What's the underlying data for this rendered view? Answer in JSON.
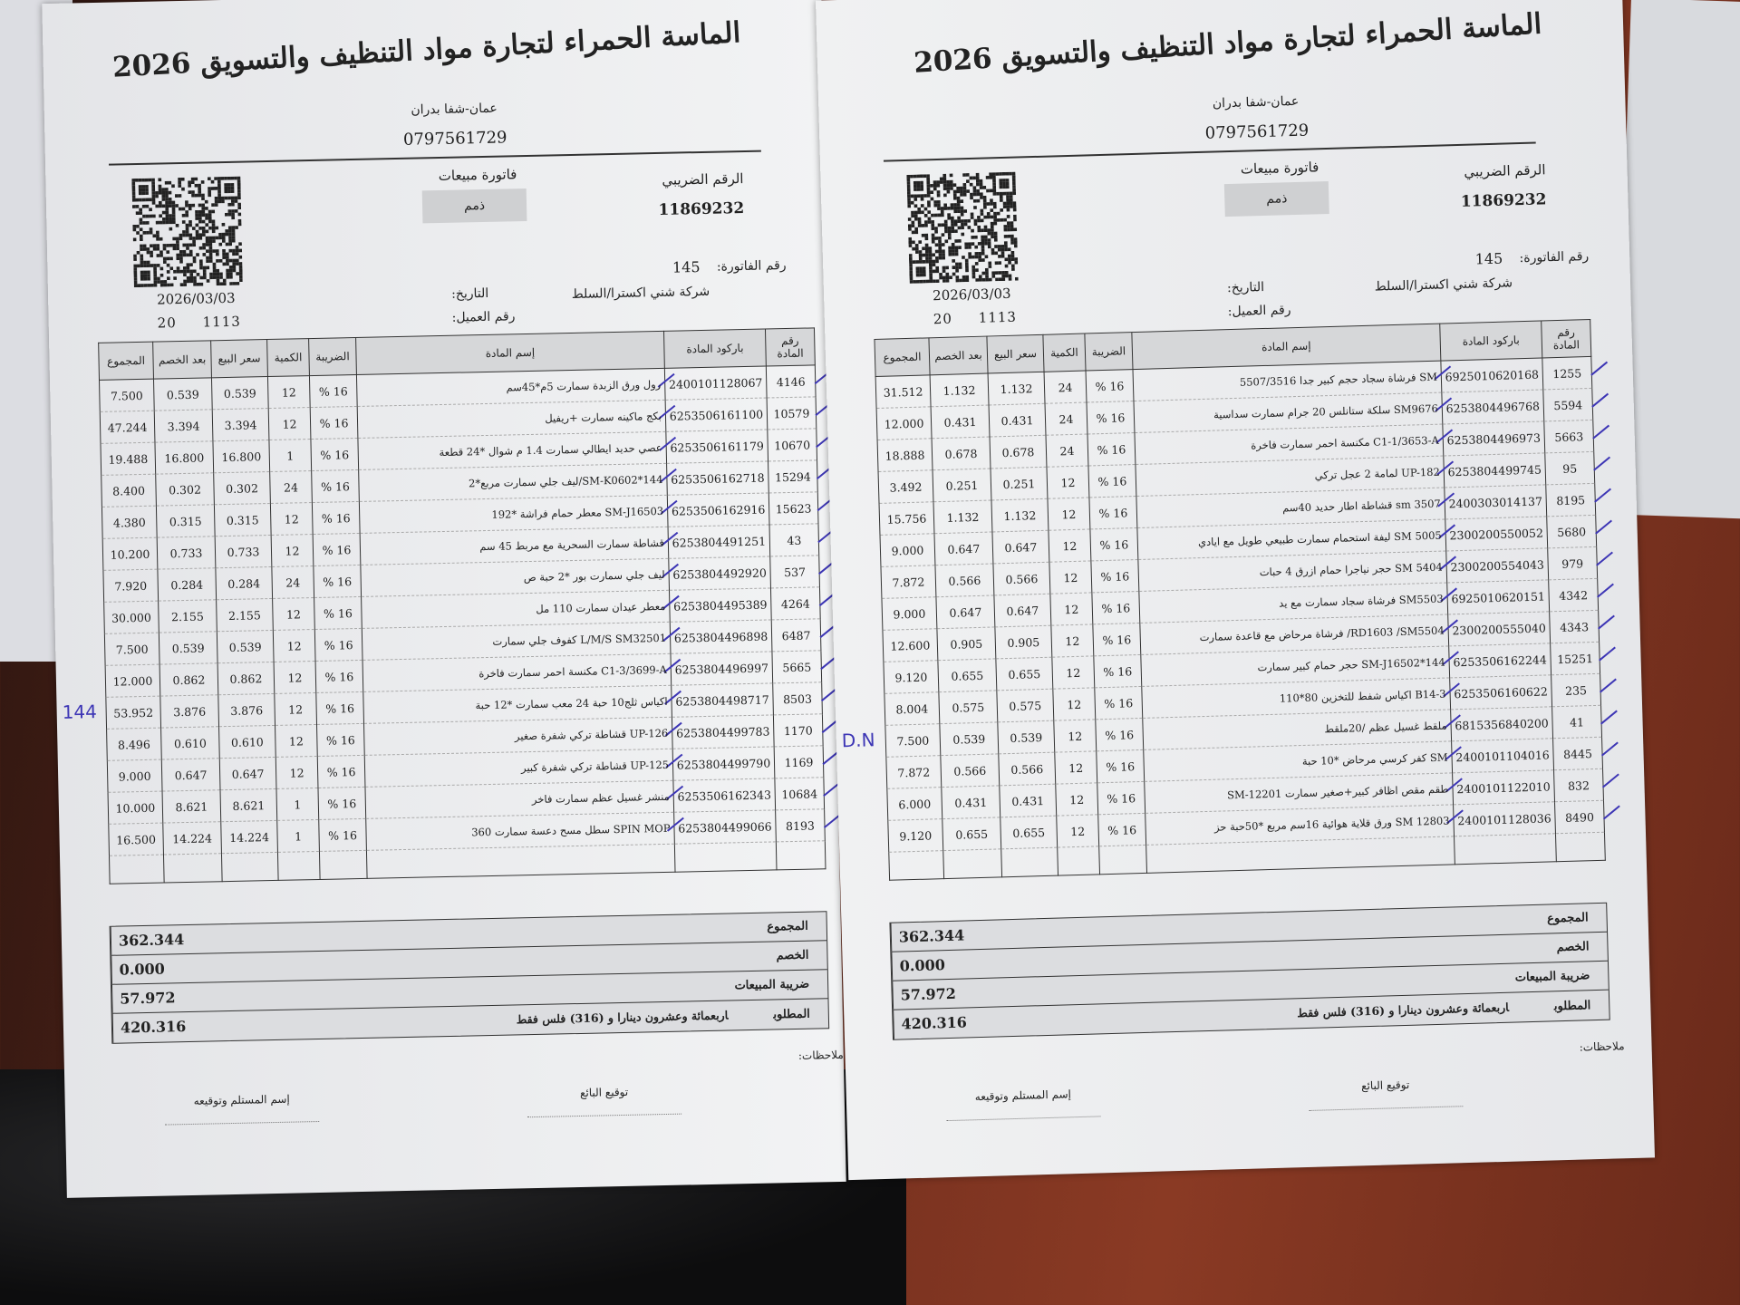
{
  "invoices": [
    {
      "company_title": "الماسة الحمراء لتجارة مواد التنظيف والتسويق 2026",
      "address": "عمان-شفا بدران",
      "phone": "0797561729",
      "tax_number_label": "الرقم الضريبي",
      "tax_number": "11869232",
      "invoice_type": "فاتورة مبيعات",
      "payment_type": "ذمم",
      "invoice_number_label": "رقم الفاتورة:",
      "invoice_number": "145",
      "customer_name": "شركة شني اكسترا/السلط",
      "date_label": "التاريخ:",
      "date": "2026/03/03",
      "customer_number_label": "رقم العميل:",
      "customer_number": "1113     20",
      "columns": [
        "رقم المادة",
        "باركود المادة",
        "إسم المادة",
        "الضريبة",
        "الكمية",
        "سعر البيع",
        "بعد الخصم",
        "المجموع"
      ],
      "rows": [
        {
          "item": "4146",
          "barcode": "2400101128067",
          "name": "رول ورق الزبدة سمارت 5م*45سم",
          "tax": "16 %",
          "qty": "12",
          "price": "0.539",
          "net": "0.539",
          "total": "7.500"
        },
        {
          "item": "10579",
          "barcode": "6253506161100",
          "name": "بكج ماكينه سمارت +ريفيل",
          "tax": "16 %",
          "qty": "12",
          "price": "3.394",
          "net": "3.394",
          "total": "47.244"
        },
        {
          "item": "10670",
          "barcode": "6253506161179",
          "name": "عصي حديد ايطالي سمارت 1.4 م شوال *24 قطعة",
          "tax": "16 %",
          "qty": "1",
          "price": "16.800",
          "net": "16.800",
          "total": "19.488"
        },
        {
          "item": "15294",
          "barcode": "6253506162718",
          "name": "SM-K0602*144/ليف جلي سمارت مربع*2",
          "tax": "16 %",
          "qty": "24",
          "price": "0.302",
          "net": "0.302",
          "total": "8.400"
        },
        {
          "item": "15623",
          "barcode": "6253506162916",
          "name": "SM-J16503 معطر حمام فراشة *192",
          "tax": "16 %",
          "qty": "12",
          "price": "0.315",
          "net": "0.315",
          "total": "4.380"
        },
        {
          "item": "43",
          "barcode": "6253804491251",
          "name": "قشاطة سمارت السحرية مع مربط 45 سم",
          "tax": "16 %",
          "qty": "12",
          "price": "0.733",
          "net": "0.733",
          "total": "10.200"
        },
        {
          "item": "537",
          "barcode": "6253804492920",
          "name": "ليف جلي سمارت بور *2 حبة ص",
          "tax": "16 %",
          "qty": "24",
          "price": "0.284",
          "net": "0.284",
          "total": "7.920"
        },
        {
          "item": "4264",
          "barcode": "6253804495389",
          "name": "معطر عيدان سمارت 110 مل",
          "tax": "16 %",
          "qty": "12",
          "price": "2.155",
          "net": "2.155",
          "total": "30.000"
        },
        {
          "item": "6487",
          "barcode": "6253804496898",
          "name": "L/M/S SM32501 كفوف جلي سمارت",
          "tax": "16 %",
          "qty": "12",
          "price": "0.539",
          "net": "0.539",
          "total": "7.500"
        },
        {
          "item": "5665",
          "barcode": "6253804496997",
          "name": "C1-3/3699-A مكنسة احمر سمارت فاخرة",
          "tax": "16 %",
          "qty": "12",
          "price": "0.862",
          "net": "0.862",
          "total": "12.000"
        },
        {
          "item": "8503",
          "barcode": "6253804498717",
          "name": "اكياس ثلج10 حبة 24 معب سمارت *12 حبة",
          "tax": "16 %",
          "qty": "12",
          "price": "3.876",
          "net": "3.876",
          "total": "53.952"
        },
        {
          "item": "1170",
          "barcode": "6253804499783",
          "name": "UP-126 قشاطة تركي شفرة صغير",
          "tax": "16 %",
          "qty": "12",
          "price": "0.610",
          "net": "0.610",
          "total": "8.496"
        },
        {
          "item": "1169",
          "barcode": "6253804499790",
          "name": "UP-125 قشاطة تركي شفرة كبير",
          "tax": "16 %",
          "qty": "12",
          "price": "0.647",
          "net": "0.647",
          "total": "9.000"
        },
        {
          "item": "10684",
          "barcode": "6253506162343",
          "name": "منشر غسيل عظم سمارت فاخر",
          "tax": "16 %",
          "qty": "1",
          "price": "8.621",
          "net": "8.621",
          "total": "10.000"
        },
        {
          "item": "8193",
          "barcode": "6253804499066",
          "name": "SPIN MOP سطل مسح دعسة سمارت 360",
          "tax": "16 %",
          "qty": "1",
          "price": "14.224",
          "net": "14.224",
          "total": "16.500"
        }
      ],
      "totals": [
        {
          "label": "المجموع",
          "value": "362.344"
        },
        {
          "label": "الخصم",
          "value": "0.000"
        },
        {
          "label": "ضريبة المبيعات",
          "value": "57.972"
        },
        {
          "label": "المطلوب",
          "value": "420.316",
          "words": "اربعمائة وعشرون دينارا و  (316)  فلس   فقط"
        }
      ],
      "notes_label": "ملاحظات:",
      "seller_signature_label": "توقيع البائع",
      "receiver_signature_label": "إسم المستلم وتوقيعه",
      "handwritten_note": "144",
      "handwritten_note_row": 10
    },
    {
      "company_title": "الماسة الحمراء لتجارة مواد التنظيف والتسويق 2026",
      "address": "عمان-شفا بدران",
      "phone": "0797561729",
      "tax_number_label": "الرقم الضريبي",
      "tax_number": "11869232",
      "invoice_type": "فاتورة مبيعات",
      "payment_type": "ذمم",
      "invoice_number_label": "رقم الفاتورة:",
      "invoice_number": "145",
      "customer_name": "شركة شني اكسترا/السلط",
      "date_label": "التاريخ:",
      "date": "2026/03/03",
      "customer_number_label": "رقم العميل:",
      "customer_number": "1113     20",
      "columns": [
        "رقم المادة",
        "باركود المادة",
        "إسم المادة",
        "الضريبة",
        "الكمية",
        "سعر البيع",
        "بعد الخصم",
        "المجموع"
      ],
      "rows": [
        {
          "item": "1255",
          "barcode": "6925010620168",
          "name": "SM فرشاة سجاد حجم كبير جدا 5507/3516",
          "tax": "16 %",
          "qty": "24",
          "price": "1.132",
          "net": "1.132",
          "total": "31.512"
        },
        {
          "item": "5594",
          "barcode": "6253804496768",
          "name": "SM9676 سلكة ستانلس 20 جرام سمارت سداسية",
          "tax": "16 %",
          "qty": "24",
          "price": "0.431",
          "net": "0.431",
          "total": "12.000"
        },
        {
          "item": "5663",
          "barcode": "6253804496973",
          "name": "C1-1/3653-A مكنسة احمر سمارت فاخرة",
          "tax": "16 %",
          "qty": "24",
          "price": "0.678",
          "net": "0.678",
          "total": "18.888"
        },
        {
          "item": "95",
          "barcode": "6253804499745",
          "name": "UP-182 لمامة 2 عجل تركي",
          "tax": "16 %",
          "qty": "12",
          "price": "0.251",
          "net": "0.251",
          "total": "3.492"
        },
        {
          "item": "8195",
          "barcode": "2400303014137",
          "name": "sm 3507 قشاطة اطار حديد 40سم",
          "tax": "16 %",
          "qty": "12",
          "price": "1.132",
          "net": "1.132",
          "total": "15.756"
        },
        {
          "item": "5680",
          "barcode": "2300200550052",
          "name": "SM 5005 ليفة استحمام سمارت طبيعي طويل مع ايادي",
          "tax": "16 %",
          "qty": "12",
          "price": "0.647",
          "net": "0.647",
          "total": "9.000"
        },
        {
          "item": "979",
          "barcode": "2300200554043",
          "name": "SM 5404 حجر نياجرا حمام ازرق 4 حبات",
          "tax": "16 %",
          "qty": "12",
          "price": "0.566",
          "net": "0.566",
          "total": "7.872"
        },
        {
          "item": "4342",
          "barcode": "6925010620151",
          "name": "SM5503 فرشاة سجاد سمارت مع يد",
          "tax": "16 %",
          "qty": "12",
          "price": "0.647",
          "net": "0.647",
          "total": "9.000"
        },
        {
          "item": "4343",
          "barcode": "2300200555040",
          "name": "RD1603 /SM5504/ فرشاة مرحاض مع قاعدة سمارت",
          "tax": "16 %",
          "qty": "12",
          "price": "0.905",
          "net": "0.905",
          "total": "12.600"
        },
        {
          "item": "15251",
          "barcode": "6253506162244",
          "name": "SM-J16502*144 حجر حمام كبير سمارت",
          "tax": "16 %",
          "qty": "12",
          "price": "0.655",
          "net": "0.655",
          "total": "9.120"
        },
        {
          "item": "235",
          "barcode": "6253506160622",
          "name": "B14-3 اكياس شفط للتخزين 80*110",
          "tax": "16 %",
          "qty": "12",
          "price": "0.575",
          "net": "0.575",
          "total": "8.004"
        },
        {
          "item": "41",
          "barcode": "6815356840200",
          "name": "ملقط غسيل عظم /20ملقط",
          "tax": "16 %",
          "qty": "12",
          "price": "0.539",
          "net": "0.539",
          "total": "7.500"
        },
        {
          "item": "8445",
          "barcode": "2400101104016",
          "name": "SM كفر كرسي مرحاض *10 حبة",
          "tax": "16 %",
          "qty": "12",
          "price": "0.566",
          "net": "0.566",
          "total": "7.872"
        },
        {
          "item": "832",
          "barcode": "2400101122010",
          "name": "طقم مقص اظافر كبير+صغير سمارت SM-12201",
          "tax": "16 %",
          "qty": "12",
          "price": "0.431",
          "net": "0.431",
          "total": "6.000"
        },
        {
          "item": "8490",
          "barcode": "2400101128036",
          "name": "SM 12803 ورق قلاية هوائية 16سم مربع *50حبة حز",
          "tax": "16 %",
          "qty": "12",
          "price": "0.655",
          "net": "0.655",
          "total": "9.120"
        }
      ],
      "totals": [
        {
          "label": "المجموع",
          "value": "362.344"
        },
        {
          "label": "الخصم",
          "value": "0.000"
        },
        {
          "label": "ضريبة المبيعات",
          "value": "57.972"
        },
        {
          "label": "المطلوب",
          "value": "420.316",
          "words": "اربعمائة وعشرون دينارا و  (316)  فلس   فقط"
        }
      ],
      "notes_label": "ملاحظات:",
      "seller_signature_label": "توقيع البائع",
      "receiver_signature_label": "إسم المستلم وتوقيعه",
      "handwritten_note": "D.N",
      "handwritten_note_row": 11
    }
  ],
  "colors": {
    "ink": "#222222",
    "pen": "#3d36b5",
    "table_header": "#d6d7d9",
    "desk": "#6b2b1c"
  }
}
